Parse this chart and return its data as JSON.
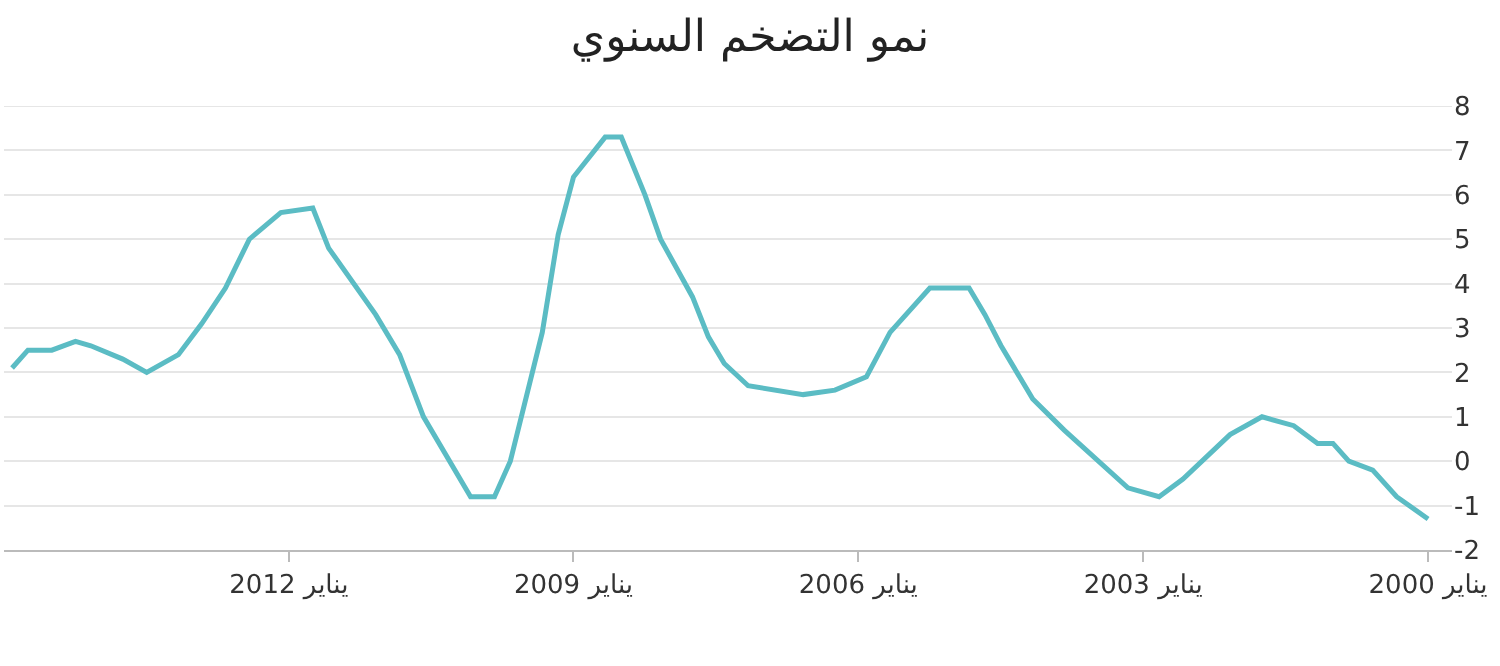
{
  "chart_data": {
    "type": "line",
    "title": "نمو التضخم السنوي",
    "series": [
      {
        "color": "#5bbcc4",
        "x": [
          "2014-12",
          "2014-10",
          "2014-07",
          "2014-04",
          "2014-02",
          "2013-10",
          "2013-07",
          "2013-03",
          "2012-12",
          "2012-09",
          "2012-06",
          "2012-02",
          "2011-10",
          "2011-08",
          "2011-02",
          "2010-11",
          "2010-08",
          "2010-02",
          "2009-11",
          "2009-09",
          "2009-05",
          "2009-03",
          "2009-01",
          "2008-09",
          "2008-07",
          "2008-04",
          "2008-02",
          "2007-10",
          "2007-08",
          "2007-06",
          "2007-03",
          "2006-08",
          "2006-04",
          "2005-12",
          "2005-09",
          "2005-04",
          "2004-11",
          "2004-09",
          "2004-07",
          "2004-03",
          "2003-11",
          "2003-03",
          "2002-11",
          "2002-08",
          "2002-02",
          "2001-10",
          "2001-06",
          "2001-03",
          "2001-01",
          "2000-11",
          "2000-08",
          "2000-05",
          "2000-01"
        ],
        "values": [
          2.1,
          2.5,
          2.5,
          2.7,
          2.6,
          2.3,
          2.0,
          2.4,
          3.1,
          3.9,
          5.0,
          5.6,
          5.7,
          4.8,
          3.3,
          2.4,
          1.0,
          -0.8,
          -0.8,
          0.0,
          2.9,
          5.1,
          6.4,
          7.3,
          7.3,
          6.0,
          5.0,
          3.7,
          2.8,
          2.2,
          1.7,
          1.5,
          1.6,
          1.9,
          2.9,
          3.9,
          3.9,
          3.3,
          2.6,
          1.4,
          0.7,
          -0.6,
          -0.8,
          -0.4,
          0.6,
          1.0,
          0.8,
          0.4,
          0.4,
          0.0,
          -0.2,
          -0.8,
          -1.3
        ]
      }
    ],
    "xlim": [
      "2015-01",
      "1999-10"
    ],
    "xticks": [
      {
        "value": "2000-01",
        "label": "يناير 2000"
      },
      {
        "value": "2003-01",
        "label": "يناير 2003"
      },
      {
        "value": "2006-01",
        "label": "يناير 2006"
      },
      {
        "value": "2009-01",
        "label": "يناير 2009"
      },
      {
        "value": "2012-01",
        "label": "يناير 2012"
      }
    ],
    "ylim": [
      -2,
      8
    ],
    "yticks": [
      -2,
      -1,
      0,
      1,
      2,
      3,
      4,
      5,
      6,
      7,
      8
    ],
    "grid": "y",
    "marker": "none",
    "line_style": "solid"
  }
}
